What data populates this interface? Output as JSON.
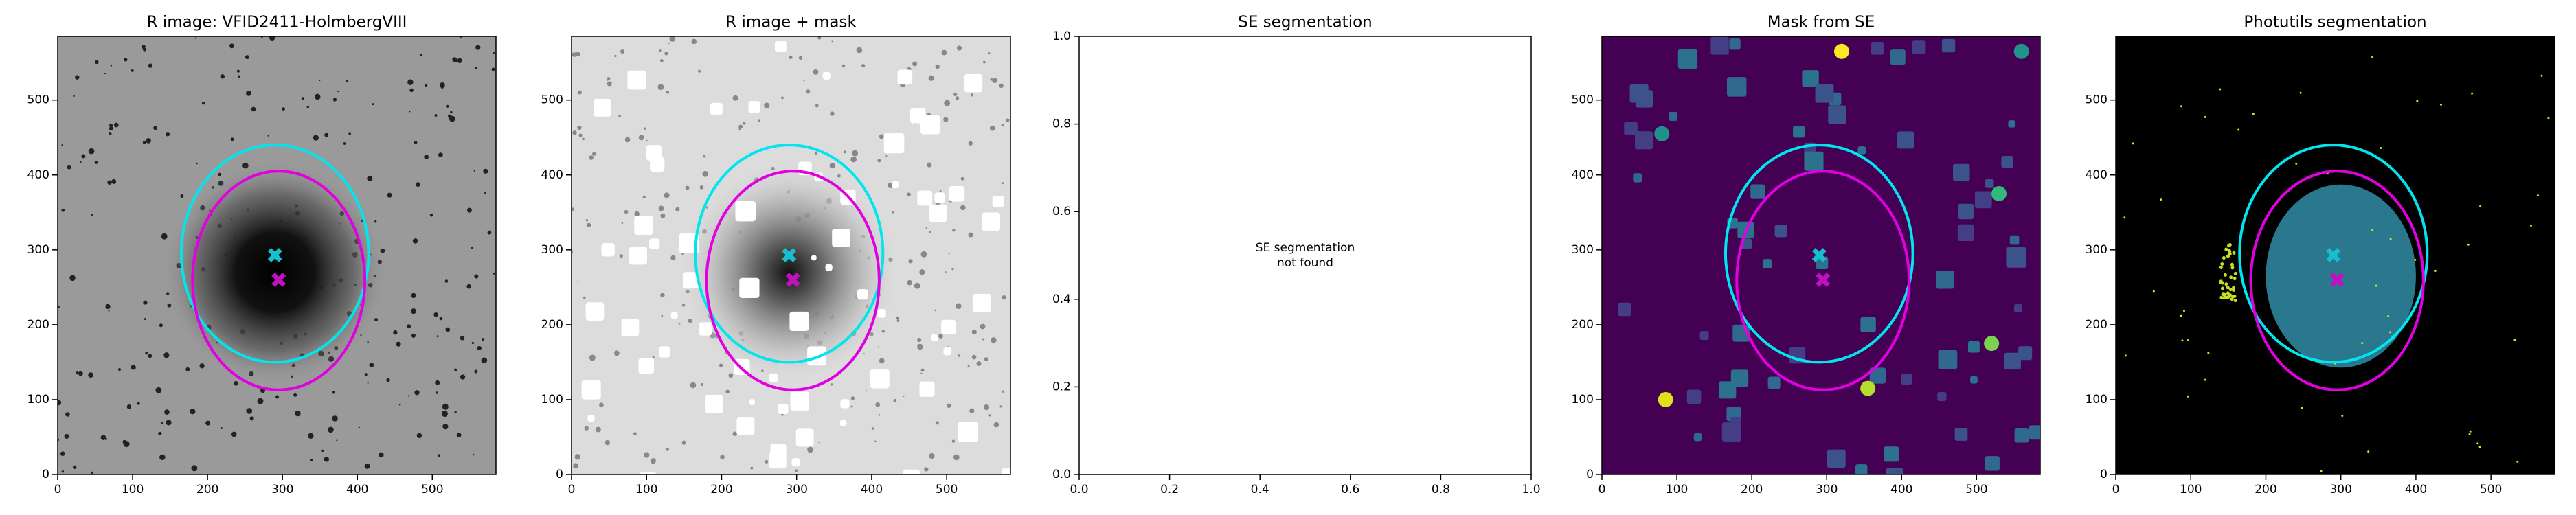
{
  "chart_data": [
    {
      "type": "image",
      "title": "R image: VFID2411-HolmbergVIII",
      "xlim": [
        0,
        585
      ],
      "ylim": [
        0,
        585
      ],
      "xticks": [
        0,
        100,
        200,
        300,
        400,
        500
      ],
      "yticks": [
        0,
        100,
        200,
        300,
        400,
        500
      ],
      "ellipses": [
        {
          "color": "#00e5ee",
          "cx": 290,
          "cy": 295,
          "rx": 125,
          "ry": 145
        },
        {
          "color": "#e000e0",
          "cx": 295,
          "cy": 259,
          "rx": 115,
          "ry": 146
        }
      ],
      "markers": [
        {
          "color": "#17becf",
          "x": 290,
          "y": 293
        },
        {
          "color": "#c010c0",
          "x": 295,
          "y": 260
        }
      ]
    },
    {
      "type": "image",
      "title": "R image + mask",
      "xlim": [
        0,
        585
      ],
      "ylim": [
        0,
        585
      ],
      "xticks": [
        0,
        100,
        200,
        300,
        400,
        500
      ],
      "yticks": [
        0,
        100,
        200,
        300,
        400,
        500
      ],
      "ellipses": [
        {
          "color": "#00e5ee",
          "cx": 290,
          "cy": 295,
          "rx": 125,
          "ry": 145
        },
        {
          "color": "#e000e0",
          "cx": 295,
          "cy": 259,
          "rx": 115,
          "ry": 146
        }
      ],
      "markers": [
        {
          "color": "#17becf",
          "x": 290,
          "y": 293
        },
        {
          "color": "#c010c0",
          "x": 295,
          "y": 260
        }
      ]
    },
    {
      "type": "empty",
      "title": "SE segmentation",
      "xlim": [
        0,
        1
      ],
      "ylim": [
        0,
        1
      ],
      "xticks": [
        {
          "value": 0,
          "label": "0.0"
        },
        {
          "value": 0.2,
          "label": "0.2"
        },
        {
          "value": 0.4,
          "label": "0.4"
        },
        {
          "value": 0.6,
          "label": "0.6"
        },
        {
          "value": 0.8,
          "label": "0.8"
        },
        {
          "value": 1,
          "label": "1.0"
        }
      ],
      "yticks": [
        {
          "value": 0,
          "label": "0.0"
        },
        {
          "value": 0.2,
          "label": "0.2"
        },
        {
          "value": 0.4,
          "label": "0.4"
        },
        {
          "value": 0.6,
          "label": "0.6"
        },
        {
          "value": 0.8,
          "label": "0.8"
        },
        {
          "value": 1,
          "label": "1.0"
        }
      ],
      "annotation": [
        "SE segmentation",
        "not found"
      ]
    },
    {
      "type": "image",
      "title": "Mask from SE",
      "xlim": [
        0,
        585
      ],
      "ylim": [
        0,
        585
      ],
      "xticks": [
        0,
        100,
        200,
        300,
        400,
        500
      ],
      "yticks": [
        0,
        100,
        200,
        300,
        400,
        500
      ],
      "ellipses": [
        {
          "color": "#00e5ee",
          "cx": 290,
          "cy": 295,
          "rx": 125,
          "ry": 145
        },
        {
          "color": "#e000e0",
          "cx": 295,
          "cy": 259,
          "rx": 115,
          "ry": 146
        }
      ],
      "markers": [
        {
          "color": "#17becf",
          "x": 290,
          "y": 293
        },
        {
          "color": "#c010c0",
          "x": 295,
          "y": 260
        }
      ]
    },
    {
      "type": "image",
      "title": "Photutils segmentation",
      "xlim": [
        0,
        585
      ],
      "ylim": [
        0,
        585
      ],
      "xticks": [
        0,
        100,
        200,
        300,
        400,
        500
      ],
      "yticks": [
        0,
        100,
        200,
        300,
        400,
        500
      ],
      "ellipses": [
        {
          "color": "#00e5ee",
          "cx": 290,
          "cy": 295,
          "rx": 125,
          "ry": 145
        },
        {
          "color": "#e000e0",
          "cx": 295,
          "cy": 259,
          "rx": 115,
          "ry": 146
        }
      ],
      "markers": [
        {
          "color": "#17becf",
          "x": 290,
          "y": 293
        },
        {
          "color": "#c010c0",
          "x": 295,
          "y": 260
        }
      ]
    }
  ]
}
